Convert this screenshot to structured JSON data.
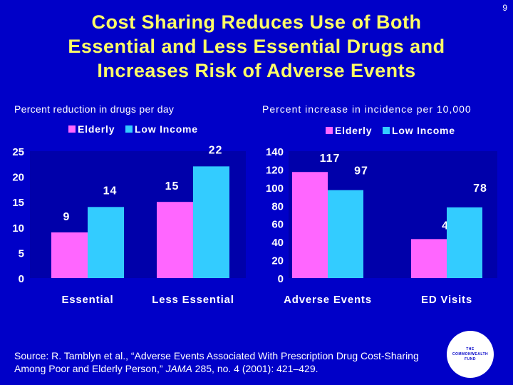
{
  "slide": {
    "number": "9",
    "title_lines": [
      "Cost Sharing Reduces Use of Both",
      "Essential and Less Essential Drugs and",
      "Increases Risk of Adverse Events"
    ]
  },
  "colors": {
    "background": "#0000C8",
    "title": "#FFFF66",
    "elderly": "#FF66FF",
    "low_income": "#33CCFF",
    "text": "#FFFFFF",
    "plot_bg": "#0000AA"
  },
  "chart_data": [
    {
      "type": "bar",
      "title": "Percent reduction in drugs per day",
      "categories": [
        "Essential",
        "Less Essential"
      ],
      "series": [
        {
          "name": "Elderly",
          "values": [
            9,
            15
          ]
        },
        {
          "name": "Low Income",
          "values": [
            14,
            22
          ]
        }
      ],
      "ylim": [
        0,
        25
      ],
      "yticks": [
        0,
        5,
        10,
        15,
        20,
        25
      ],
      "legend": "top"
    },
    {
      "type": "bar",
      "title": "Percent increase in incidence per 10,000",
      "categories": [
        "Adverse Events",
        "ED Visits"
      ],
      "series": [
        {
          "name": "Elderly",
          "values": [
            117,
            43
          ]
        },
        {
          "name": "Low Income",
          "values": [
            97,
            78
          ]
        }
      ],
      "ylim": [
        0,
        140
      ],
      "yticks": [
        0,
        20,
        40,
        60,
        80,
        100,
        120,
        140
      ],
      "legend": "top"
    }
  ],
  "source": {
    "prefix": "Source: R. Tamblyn et al., “Adverse Events Associated With Prescription Drug Cost-Sharing Among Poor and Elderly Person,” ",
    "journal": "JAMA",
    "suffix": " 285, no. 4 (2001): 421–429."
  },
  "logo": {
    "lines": [
      "THE",
      "COMMONWEALTH",
      "FUND"
    ]
  }
}
